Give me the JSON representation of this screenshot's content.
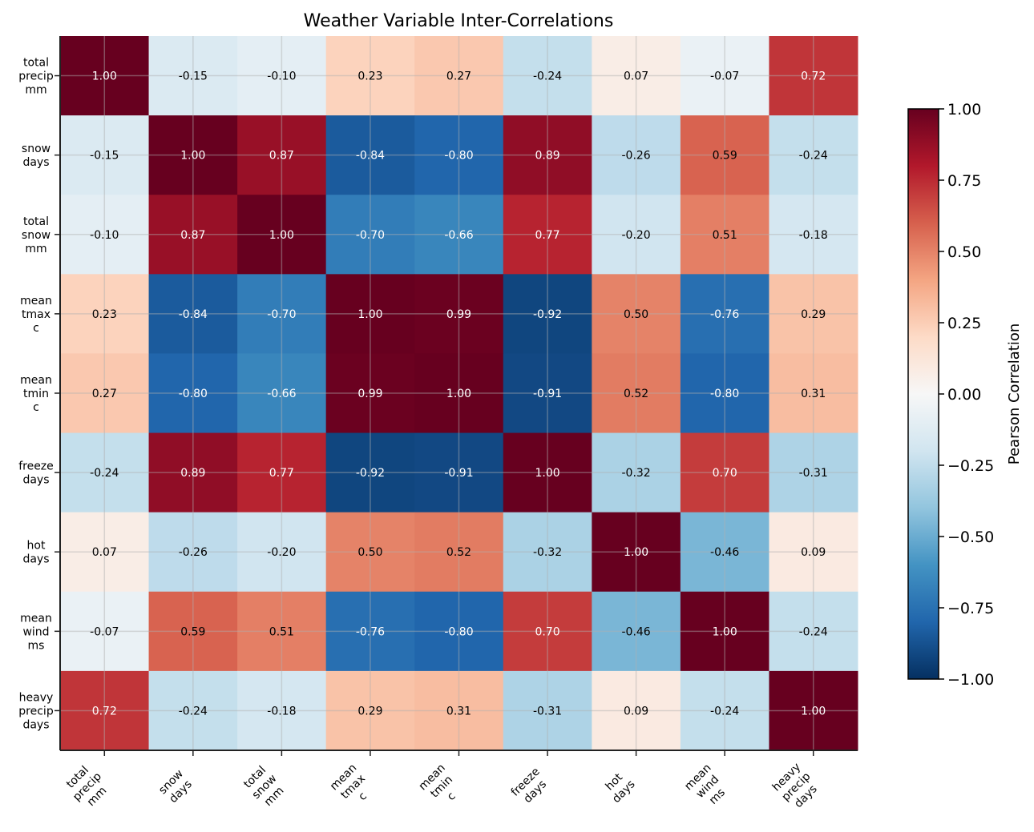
{
  "chart_data": {
    "type": "heatmap",
    "title": "Weather Variable Inter-Correlations",
    "row_labels": [
      "total\nprecip\nmm",
      "snow\ndays",
      "total\nsnow\nmm",
      "mean\ntmax\nc",
      "mean\ntmin\nc",
      "freeze\ndays",
      "hot\ndays",
      "mean\nwind\nms",
      "heavy\nprecip\ndays"
    ],
    "col_labels": [
      "total\nprecip\nmm",
      "snow\ndays",
      "total\nsnow\nmm",
      "mean\ntmax\nc",
      "mean\ntmin\nc",
      "freeze\ndays",
      "hot\ndays",
      "mean\nwind\nms",
      "heavy\nprecip\ndays"
    ],
    "values": [
      [
        1.0,
        -0.15,
        -0.1,
        0.23,
        0.27,
        -0.24,
        0.07,
        -0.07,
        0.72
      ],
      [
        -0.15,
        1.0,
        0.87,
        -0.84,
        -0.8,
        0.89,
        -0.26,
        0.59,
        -0.24
      ],
      [
        -0.1,
        0.87,
        1.0,
        -0.7,
        -0.66,
        0.77,
        -0.2,
        0.51,
        -0.18
      ],
      [
        0.23,
        -0.84,
        -0.7,
        1.0,
        0.99,
        -0.92,
        0.5,
        -0.76,
        0.29
      ],
      [
        0.27,
        -0.8,
        -0.66,
        0.99,
        1.0,
        -0.91,
        0.52,
        -0.8,
        0.31
      ],
      [
        -0.24,
        0.89,
        0.77,
        -0.92,
        -0.91,
        1.0,
        -0.32,
        0.7,
        -0.31
      ],
      [
        0.07,
        -0.26,
        -0.2,
        0.5,
        0.52,
        -0.32,
        1.0,
        -0.46,
        0.09
      ],
      [
        -0.07,
        0.59,
        0.51,
        -0.76,
        -0.8,
        0.7,
        -0.46,
        1.0,
        -0.24
      ],
      [
        0.72,
        -0.24,
        -0.18,
        0.29,
        0.31,
        -0.31,
        0.09,
        -0.24,
        1.0
      ]
    ],
    "colormap": "RdBu_r",
    "colormap_stops": [
      "#053061",
      "#2166ac",
      "#4393c3",
      "#92c5de",
      "#d1e5f0",
      "#f7f7f7",
      "#fddbc7",
      "#f4a582",
      "#d6604d",
      "#b2182b",
      "#67001f"
    ],
    "vmin": -1.0,
    "vmax": 1.0,
    "grid": true,
    "colorbar": {
      "label": "Pearson Correlation",
      "ticks": [
        "1.00",
        "0.75",
        "0.50",
        "0.25",
        "0.00",
        "−0.25",
        "−0.50",
        "−0.75",
        "−1.00"
      ],
      "tick_values": [
        1.0,
        0.75,
        0.5,
        0.25,
        0.0,
        -0.25,
        -0.5,
        -0.75,
        -1.0
      ],
      "position": "right"
    }
  }
}
